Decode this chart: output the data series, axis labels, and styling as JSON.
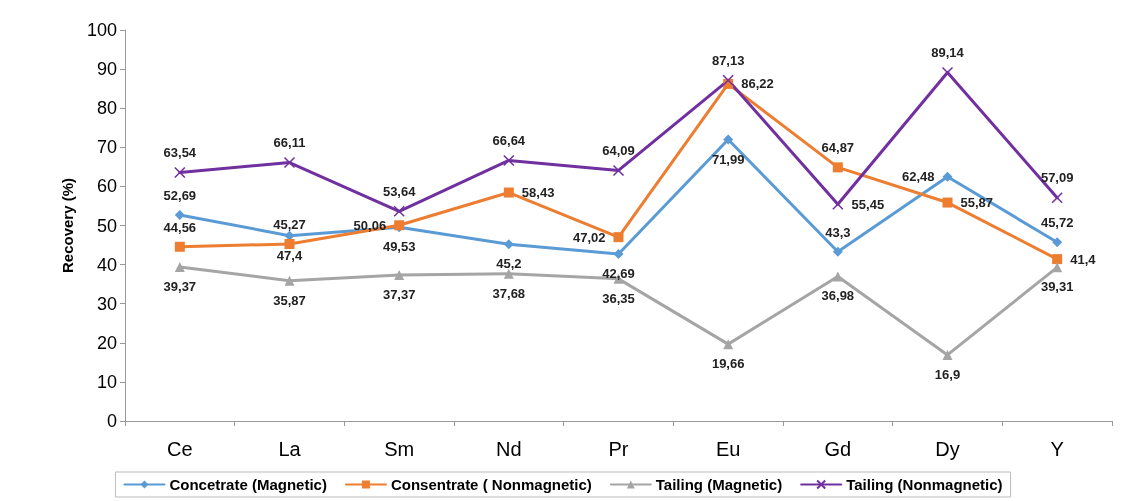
{
  "chart_data": {
    "type": "line",
    "ylabel": "Recovery (%)",
    "categories": [
      "Ce",
      "La",
      "Sm",
      "Nd",
      "Pr",
      "Eu",
      "Gd",
      "Dy",
      "Y"
    ],
    "ylim": [
      0,
      100
    ],
    "yticks": [
      0,
      10,
      20,
      30,
      40,
      50,
      60,
      70,
      80,
      90,
      100
    ],
    "grid": false,
    "legend": "bottom",
    "series": [
      {
        "name": "Concetrate (Magnetic)",
        "color": "#5b9bd5",
        "marker": "diamond",
        "values": [
          52.69,
          47.4,
          49.53,
          45.2,
          42.69,
          71.99,
          43.3,
          62.48,
          45.72
        ],
        "value_labels": [
          "52,69",
          "47,4",
          "49,53",
          "45,2",
          "42,69",
          "71,99",
          "43,3",
          "62,48",
          "45,72"
        ]
      },
      {
        "name": "Consentrate ( Nonmagnetic)",
        "color": "#ed7d31",
        "marker": "square",
        "values": [
          44.56,
          45.27,
          50.06,
          58.43,
          47.02,
          86.22,
          64.87,
          55.87,
          41.4
        ],
        "value_labels": [
          "44,56",
          "45,27",
          "50,06",
          "58,43",
          "47,02",
          "86,22",
          "64,87",
          "55,87",
          "41,4"
        ]
      },
      {
        "name": "Tailing (Magnetic)",
        "color": "#a5a5a5",
        "marker": "triangle",
        "values": [
          39.37,
          35.87,
          37.37,
          37.68,
          36.35,
          19.66,
          36.98,
          16.9,
          39.31
        ],
        "value_labels": [
          "39,37",
          "35,87",
          "37,37",
          "37,68",
          "36,35",
          "19,66",
          "36,98",
          "16,9",
          "39,31"
        ]
      },
      {
        "name": "Tailing (Nonmagnetic)",
        "color": "#7030a0",
        "marker": "cross",
        "values": [
          63.54,
          66.11,
          53.64,
          66.64,
          64.09,
          87.13,
          55.45,
          89.14,
          57.09
        ],
        "value_labels": [
          "63,54",
          "66,11",
          "53,64",
          "66,64",
          "64,09",
          "87,13",
          "55,45",
          "89,14",
          "57,09"
        ]
      }
    ]
  }
}
